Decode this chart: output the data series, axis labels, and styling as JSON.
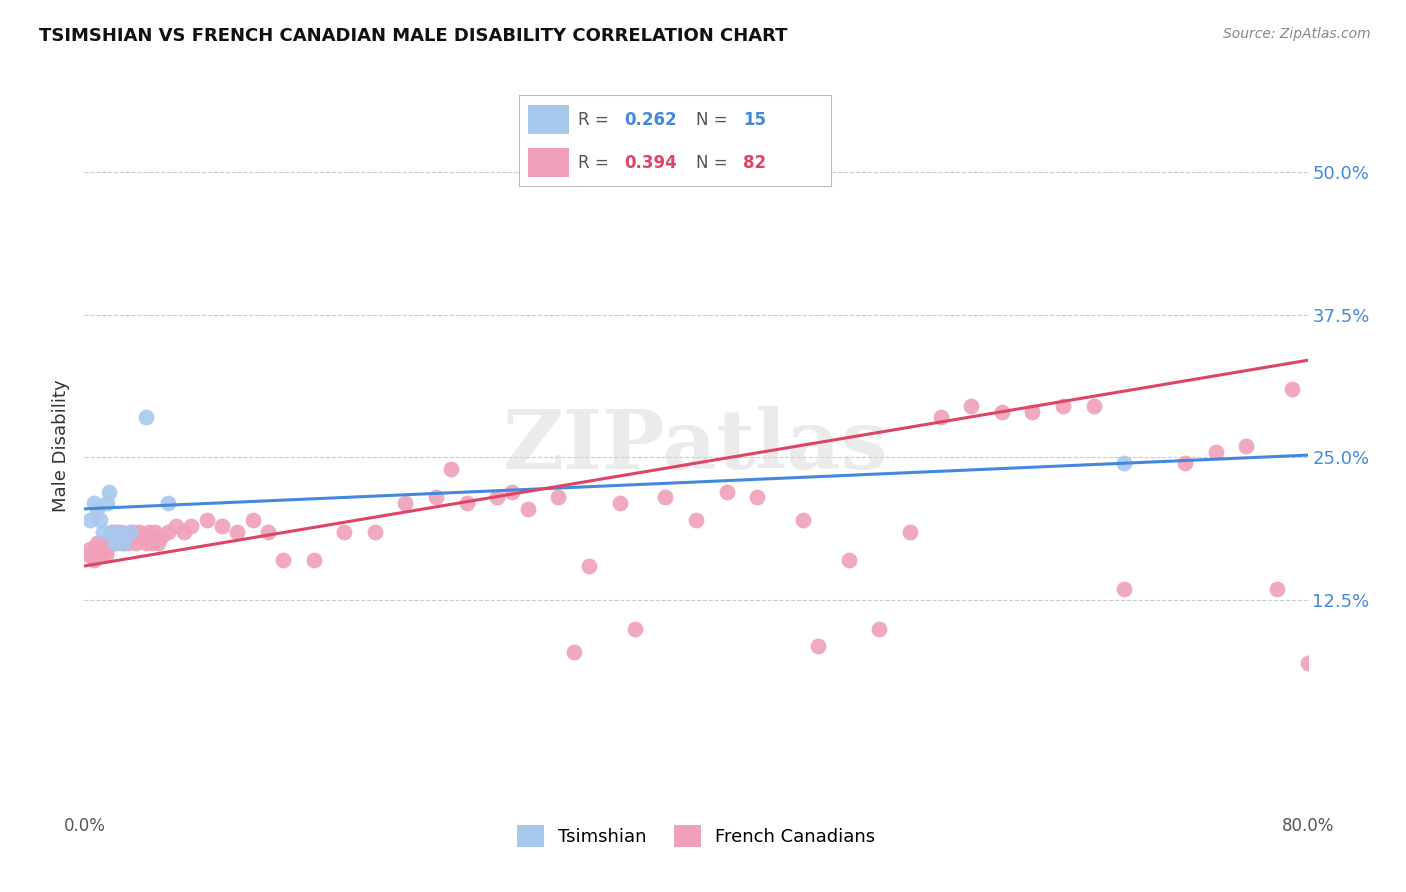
{
  "title": "TSIMSHIAN VS FRENCH CANADIAN MALE DISABILITY CORRELATION CHART",
  "source": "Source: ZipAtlas.com",
  "ylabel": "Male Disability",
  "ytick_labels": [
    "12.5%",
    "25.0%",
    "37.5%",
    "50.0%"
  ],
  "ytick_values": [
    0.125,
    0.25,
    0.375,
    0.5
  ],
  "xmin": 0.0,
  "xmax": 0.8,
  "ymin": -0.06,
  "ymax": 0.58,
  "tsimshian_R": "0.262",
  "tsimshian_N": "15",
  "french_R": "0.394",
  "french_N": "82",
  "tsimshian_color": "#a8c8f0",
  "french_color": "#f0a0b8",
  "tsimshian_line_color": "#4488dd",
  "french_line_color": "#dd4466",
  "background_color": "#ffffff",
  "grid_color": "#cccccc",
  "watermark_text": "ZIPatlas",
  "tsimshian_x": [
    0.004,
    0.006,
    0.008,
    0.01,
    0.012,
    0.015,
    0.016,
    0.018,
    0.02,
    0.022,
    0.025,
    0.03,
    0.04,
    0.055,
    0.68
  ],
  "tsimshian_y": [
    0.195,
    0.21,
    0.205,
    0.195,
    0.185,
    0.21,
    0.22,
    0.185,
    0.175,
    0.185,
    0.175,
    0.185,
    0.285,
    0.21,
    0.245
  ],
  "french_x": [
    0.003,
    0.004,
    0.005,
    0.006,
    0.007,
    0.008,
    0.009,
    0.01,
    0.011,
    0.012,
    0.013,
    0.014,
    0.015,
    0.016,
    0.017,
    0.018,
    0.019,
    0.02,
    0.021,
    0.022,
    0.024,
    0.025,
    0.026,
    0.028,
    0.03,
    0.032,
    0.034,
    0.036,
    0.038,
    0.04,
    0.042,
    0.044,
    0.046,
    0.048,
    0.05,
    0.055,
    0.06,
    0.065,
    0.07,
    0.08,
    0.09,
    0.1,
    0.11,
    0.12,
    0.13,
    0.15,
    0.17,
    0.19,
    0.21,
    0.23,
    0.25,
    0.27,
    0.29,
    0.31,
    0.33,
    0.35,
    0.38,
    0.4,
    0.42,
    0.44,
    0.47,
    0.5,
    0.54,
    0.58,
    0.62,
    0.66,
    0.72,
    0.76,
    0.79,
    0.32,
    0.36,
    0.28,
    0.24,
    0.48,
    0.52,
    0.56,
    0.6,
    0.64,
    0.68,
    0.74,
    0.78,
    0.8
  ],
  "french_y": [
    0.165,
    0.17,
    0.165,
    0.16,
    0.17,
    0.175,
    0.17,
    0.165,
    0.175,
    0.17,
    0.175,
    0.165,
    0.17,
    0.175,
    0.18,
    0.185,
    0.175,
    0.18,
    0.185,
    0.175,
    0.185,
    0.175,
    0.18,
    0.175,
    0.18,
    0.185,
    0.175,
    0.185,
    0.18,
    0.175,
    0.185,
    0.175,
    0.185,
    0.175,
    0.18,
    0.185,
    0.19,
    0.185,
    0.19,
    0.195,
    0.19,
    0.185,
    0.195,
    0.185,
    0.16,
    0.16,
    0.185,
    0.185,
    0.21,
    0.215,
    0.21,
    0.215,
    0.205,
    0.215,
    0.155,
    0.21,
    0.215,
    0.195,
    0.22,
    0.215,
    0.195,
    0.16,
    0.185,
    0.295,
    0.29,
    0.295,
    0.245,
    0.26,
    0.31,
    0.08,
    0.1,
    0.22,
    0.24,
    0.085,
    0.1,
    0.285,
    0.29,
    0.295,
    0.135,
    0.255,
    0.135,
    0.07
  ],
  "line_blue_x0": 0.0,
  "line_blue_y0": 0.205,
  "line_blue_x1": 0.8,
  "line_blue_y1": 0.252,
  "line_pink_x0": 0.0,
  "line_pink_y0": 0.155,
  "line_pink_x1": 0.8,
  "line_pink_y1": 0.335
}
